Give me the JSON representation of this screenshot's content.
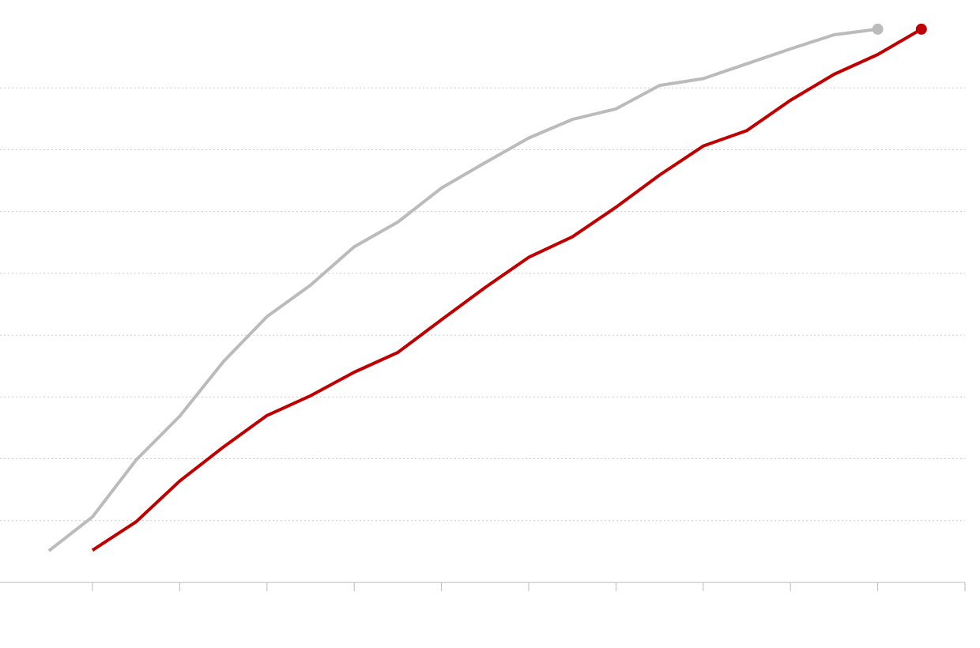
{
  "chart_data": {
    "type": "line",
    "x": [
      0,
      1,
      2,
      3,
      4,
      5,
      6,
      7,
      8,
      9,
      10,
      11,
      12,
      13,
      14,
      15,
      16,
      17,
      18,
      19,
      20
    ],
    "series": [
      {
        "color": "#bbbbbb",
        "values": [
          0.51,
          1.06,
          1.98,
          2.69,
          3.57,
          4.3,
          4.81,
          5.43,
          5.83,
          6.38,
          6.79,
          7.19,
          7.49,
          7.66,
          8.04,
          8.15,
          8.39,
          8.63,
          8.86,
          8.95,
          null
        ]
      },
      {
        "color": "#c00000",
        "values": [
          null,
          0.52,
          0.98,
          1.64,
          2.19,
          2.7,
          3.02,
          3.4,
          3.72,
          4.25,
          4.77,
          5.26,
          5.59,
          6.07,
          6.59,
          7.06,
          7.31,
          7.8,
          8.22,
          8.54,
          8.95
        ]
      }
    ],
    "xlim": [
      -1.12,
      21
    ],
    "xticks": [
      1,
      3,
      5,
      7,
      9,
      11,
      13,
      15,
      17,
      19,
      21
    ],
    "ylim": [
      0,
      9
    ],
    "yticks": [
      0,
      1,
      2,
      3,
      4,
      5,
      6,
      7,
      8
    ],
    "grid": true
  }
}
